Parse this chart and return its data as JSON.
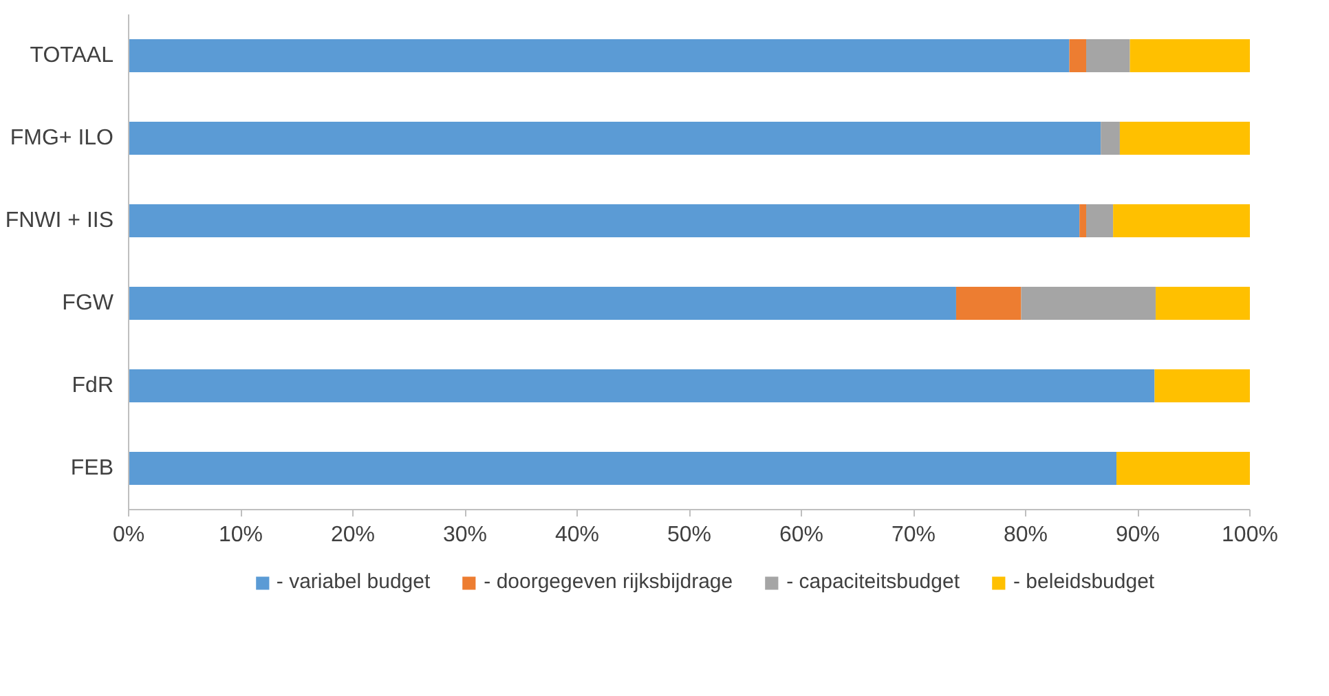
{
  "chart_data": {
    "type": "bar",
    "orientation": "horizontal",
    "stacked": true,
    "categories": [
      "TOTAAL",
      "FMG+ ILO",
      "FNWI + IIS",
      "FGW",
      "FdR",
      "FEB"
    ],
    "series": [
      {
        "name": "- variabel budget",
        "color": "#5b9bd5",
        "values": [
          83.9,
          86.7,
          84.8,
          73.8,
          91.5,
          88.1
        ]
      },
      {
        "name": "- doorgegeven rijksbijdrage",
        "color": "#ed7d31",
        "values": [
          1.5,
          0,
          0.6,
          5.8,
          0,
          0
        ]
      },
      {
        "name": "- capaciteitsbudget",
        "color": "#a5a5a5",
        "values": [
          3.9,
          1.7,
          2.4,
          12.0,
          0,
          0
        ]
      },
      {
        "name": "- beleidsbudget",
        "color": "#ffc000",
        "values": [
          10.7,
          11.6,
          12.2,
          8.4,
          8.5,
          11.9
        ]
      }
    ],
    "xlim": [
      0,
      100
    ],
    "xticks": [
      {
        "value": 0,
        "label": "0%"
      },
      {
        "value": 10,
        "label": "10%"
      },
      {
        "value": 20,
        "label": "20%"
      },
      {
        "value": 30,
        "label": "30%"
      },
      {
        "value": 40,
        "label": "40%"
      },
      {
        "value": 50,
        "label": "50%"
      },
      {
        "value": 60,
        "label": "60%"
      },
      {
        "value": 70,
        "label": "70%"
      },
      {
        "value": 80,
        "label": "80%"
      },
      {
        "value": 90,
        "label": "90%"
      },
      {
        "value": 100,
        "label": "100%"
      }
    ],
    "grid": false,
    "legend": "bottom"
  }
}
